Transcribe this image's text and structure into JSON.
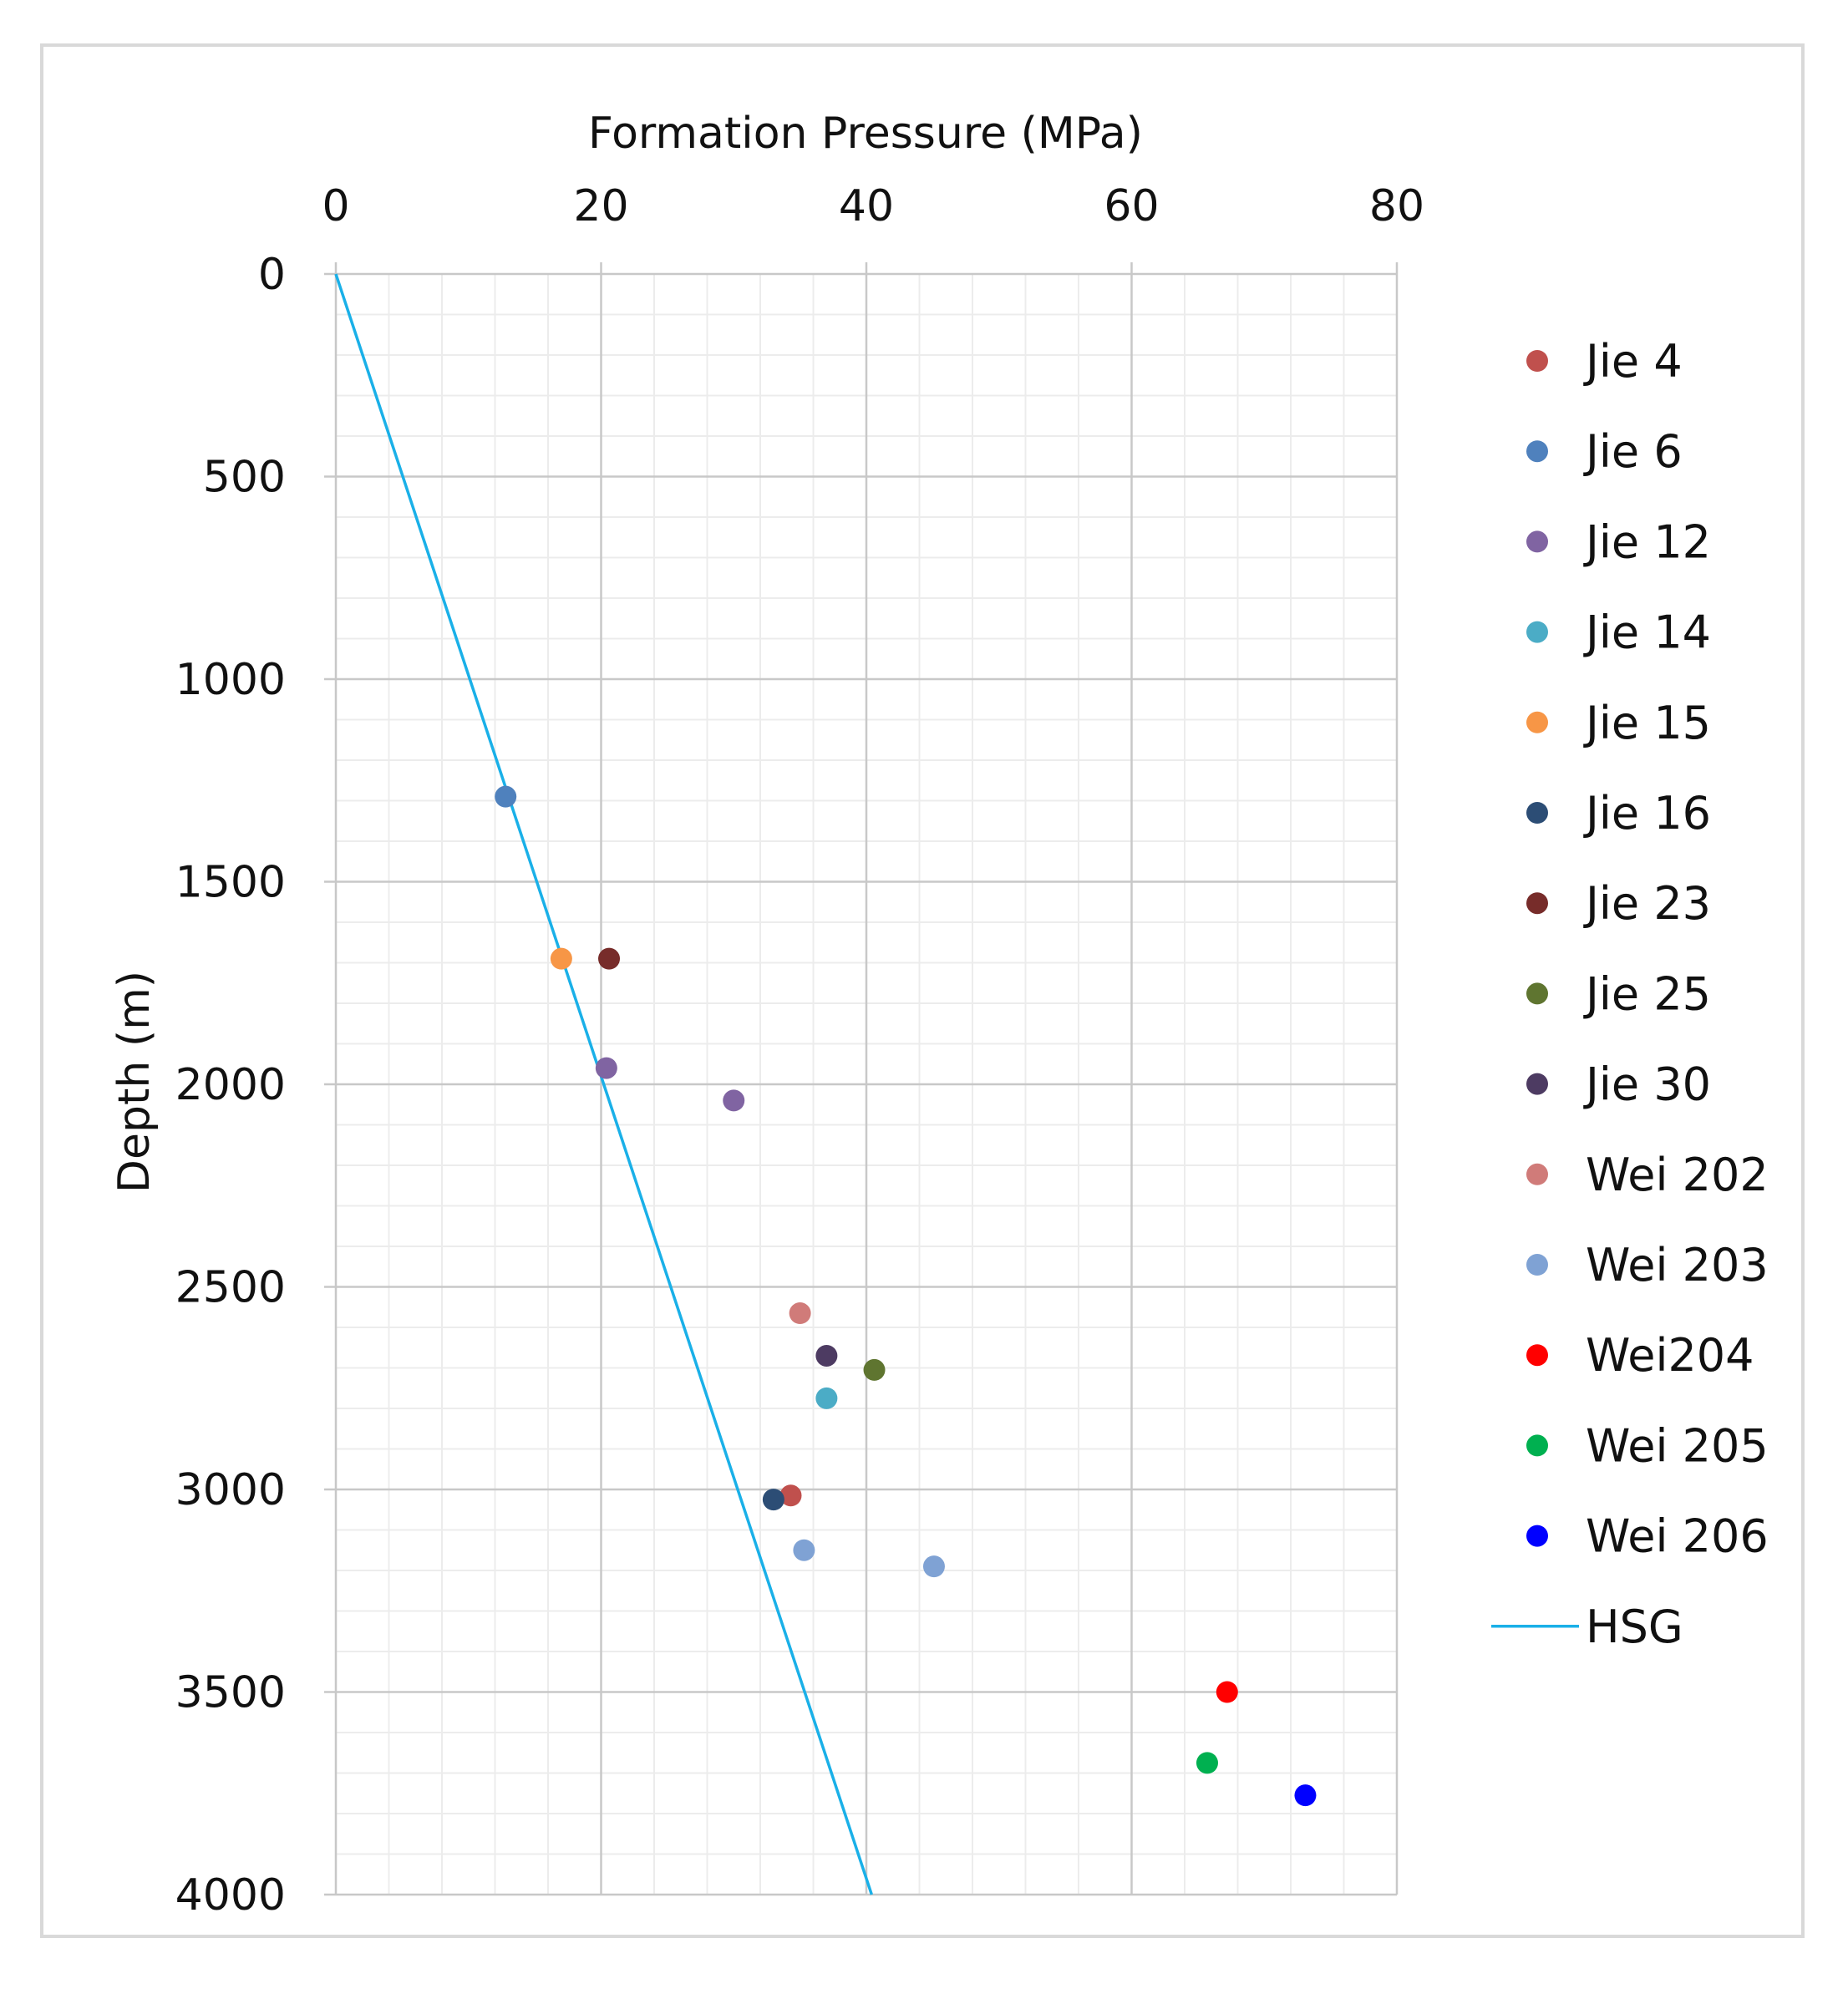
{
  "chart_data": {
    "type": "scatter",
    "title": "",
    "xlabel": "Formation Pressure (MPa)",
    "ylabel": "Depth (m)",
    "xlim": [
      0,
      80
    ],
    "ylim": [
      0,
      4000
    ],
    "y_inverted": true,
    "x_axis_position": "top",
    "x_ticks": [
      0,
      20,
      40,
      60,
      80
    ],
    "y_ticks": [
      0,
      500,
      1000,
      1500,
      2000,
      2500,
      3000,
      3500,
      4000
    ],
    "grid": true,
    "legend_position": "right",
    "series": [
      {
        "name": "Jie 4",
        "color": "#c0504d",
        "points": [
          {
            "x": 34.3,
            "y": 3015
          }
        ]
      },
      {
        "name": "Jie 6",
        "color": "#4f81bd",
        "points": [
          {
            "x": 12.8,
            "y": 1290
          }
        ]
      },
      {
        "name": "Jie 12",
        "color": "#8064a2",
        "points": [
          {
            "x": 20.4,
            "y": 1960
          },
          {
            "x": 30.0,
            "y": 2040
          }
        ]
      },
      {
        "name": "Jie 14",
        "color": "#4bacc6",
        "points": [
          {
            "x": 37.0,
            "y": 2775
          }
        ]
      },
      {
        "name": "Jie 15",
        "color": "#f79646",
        "points": [
          {
            "x": 17.0,
            "y": 1690
          }
        ]
      },
      {
        "name": "Jie 16",
        "color": "#2c4d75",
        "points": [
          {
            "x": 33.0,
            "y": 3025
          }
        ]
      },
      {
        "name": "Jie 23",
        "color": "#772c2a",
        "points": [
          {
            "x": 20.6,
            "y": 1690
          }
        ]
      },
      {
        "name": "Jie 25",
        "color": "#5f7530",
        "points": [
          {
            "x": 40.6,
            "y": 2705
          }
        ]
      },
      {
        "name": "Jie 30",
        "color": "#4d3b62",
        "points": [
          {
            "x": 37.0,
            "y": 2670
          }
        ]
      },
      {
        "name": "Wei 202",
        "color": "#d07b79",
        "points": [
          {
            "x": 35.0,
            "y": 2565
          }
        ]
      },
      {
        "name": "Wei 203",
        "color": "#7fa2d4",
        "points": [
          {
            "x": 35.3,
            "y": 3150
          },
          {
            "x": 45.1,
            "y": 3190
          }
        ]
      },
      {
        "name": "Wei204",
        "color": "#ff0000",
        "points": [
          {
            "x": 67.2,
            "y": 3500
          }
        ]
      },
      {
        "name": "Wei 205",
        "color": "#00b050",
        "points": [
          {
            "x": 65.7,
            "y": 3675
          }
        ]
      },
      {
        "name": "Wei 206",
        "color": "#0000ff",
        "points": [
          {
            "x": 73.1,
            "y": 3755
          }
        ]
      }
    ],
    "lines": [
      {
        "name": "HSG",
        "color": "#1ab0e8",
        "points": [
          {
            "x": 0,
            "y": 0
          },
          {
            "x": 40.4,
            "y": 4000
          }
        ]
      }
    ]
  }
}
